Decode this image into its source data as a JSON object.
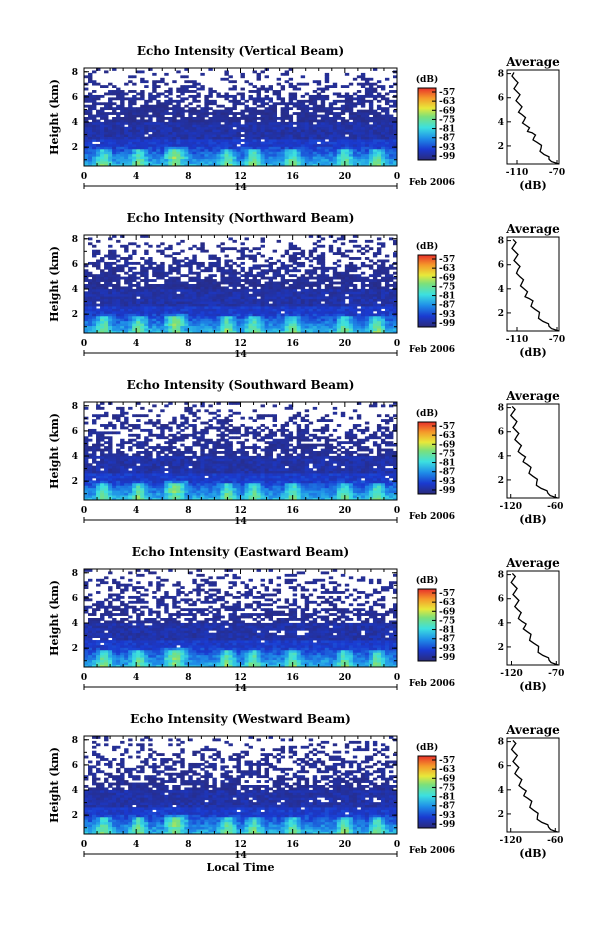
{
  "chart_data": [
    {
      "type": "heatmap",
      "title": "Echo Intensity (Vertical Beam)",
      "ylabel": "Height (km)",
      "ylim": [
        0.5,
        8.3
      ],
      "yticks": [
        "2",
        "4",
        "6",
        "8"
      ],
      "xlim": [
        0,
        24
      ],
      "xticks": [
        "0",
        "4",
        "8",
        "12",
        "16",
        "20",
        "0"
      ],
      "day_label": "14",
      "date_label": "Feb 2006",
      "colorbar": {
        "label": "(dB)",
        "ticks": [
          "-57",
          "-63",
          "-69",
          "-75",
          "-81",
          "-87",
          "-93",
          "-99"
        ]
      },
      "profile": {
        "title": "Average",
        "xlabel": "(dB)",
        "xticks": [
          "-110",
          "-70"
        ],
        "xlim": [
          -120,
          -68
        ],
        "yticks": [
          "2",
          "4",
          "6",
          "8"
        ],
        "points": [
          [
            -68,
            0.5
          ],
          [
            -78,
            0.9
          ],
          [
            -83,
            1.3
          ],
          [
            -86,
            1.8
          ],
          [
            -90,
            2.3
          ],
          [
            -93,
            2.7
          ],
          [
            -95,
            3.1
          ],
          [
            -99,
            3.3
          ],
          [
            -101,
            3.7
          ],
          [
            -103,
            4.1
          ],
          [
            -105,
            4.6
          ],
          [
            -107,
            5.0
          ],
          [
            -108,
            5.5
          ],
          [
            -109,
            6.0
          ],
          [
            -110,
            6.5
          ],
          [
            -111,
            7.0
          ],
          [
            -112,
            7.5
          ],
          [
            -113,
            8.1
          ]
        ]
      }
    },
    {
      "type": "heatmap",
      "title": "Echo Intensity (Northward Beam)",
      "ylabel": "Height (km)",
      "ylim": [
        0.5,
        8.3
      ],
      "yticks": [
        "2",
        "4",
        "6",
        "8"
      ],
      "xlim": [
        0,
        24
      ],
      "xticks": [
        "0",
        "4",
        "8",
        "12",
        "16",
        "20",
        "0"
      ],
      "day_label": "14",
      "date_label": "Feb 2006",
      "colorbar": {
        "label": "(dB)",
        "ticks": [
          "-57",
          "-63",
          "-69",
          "-75",
          "-81",
          "-87",
          "-93",
          "-99"
        ]
      },
      "profile": {
        "title": "Average",
        "xlabel": "(dB)",
        "xticks": [
          "-110",
          "-70"
        ],
        "xlim": [
          -120,
          -68
        ],
        "yticks": [
          "2",
          "4",
          "6",
          "8"
        ],
        "points": [
          [
            -68,
            0.5
          ],
          [
            -78,
            0.9
          ],
          [
            -84,
            1.3
          ],
          [
            -88,
            1.8
          ],
          [
            -92,
            2.3
          ],
          [
            -95,
            2.8
          ],
          [
            -98,
            3.2
          ],
          [
            -101,
            3.5
          ],
          [
            -103,
            4.0
          ],
          [
            -105,
            4.5
          ],
          [
            -107,
            5.0
          ],
          [
            -109,
            5.6
          ],
          [
            -110,
            6.1
          ],
          [
            -111,
            6.6
          ],
          [
            -112,
            7.1
          ],
          [
            -113,
            7.6
          ],
          [
            -114,
            8.1
          ]
        ]
      }
    },
    {
      "type": "heatmap",
      "title": "Echo Intensity (Southward Beam)",
      "ylabel": "Height (km)",
      "ylim": [
        0.5,
        8.3
      ],
      "yticks": [
        "2",
        "4",
        "6",
        "8"
      ],
      "xlim": [
        0,
        24
      ],
      "xticks": [
        "0",
        "4",
        "8",
        "12",
        "16",
        "20",
        "0"
      ],
      "day_label": "14",
      "date_label": "Feb 2006",
      "colorbar": {
        "label": "(dB)",
        "ticks": [
          "-57",
          "-63",
          "-69",
          "-75",
          "-81",
          "-87",
          "-93",
          "-99"
        ]
      },
      "profile": {
        "title": "Average",
        "xlabel": "(dB)",
        "xticks": [
          "-120",
          "-60"
        ],
        "xlim": [
          -125,
          -55
        ],
        "yticks": [
          "2",
          "4",
          "6",
          "8"
        ],
        "points": [
          [
            -57,
            0.5
          ],
          [
            -70,
            0.9
          ],
          [
            -79,
            1.3
          ],
          [
            -85,
            1.8
          ],
          [
            -90,
            2.3
          ],
          [
            -94,
            2.8
          ],
          [
            -98,
            3.3
          ],
          [
            -102,
            3.7
          ],
          [
            -105,
            4.1
          ],
          [
            -108,
            4.6
          ],
          [
            -110,
            5.1
          ],
          [
            -112,
            5.6
          ],
          [
            -113,
            6.1
          ],
          [
            -114,
            6.6
          ],
          [
            -116,
            7.1
          ],
          [
            -117,
            7.6
          ],
          [
            -118,
            8.1
          ]
        ]
      }
    },
    {
      "type": "heatmap",
      "title": "Echo Intensity (Eastward Beam)",
      "ylabel": "Height (km)",
      "ylim": [
        0.5,
        8.3
      ],
      "yticks": [
        "2",
        "4",
        "6",
        "8"
      ],
      "xlim": [
        0,
        24
      ],
      "xticks": [
        "0",
        "4",
        "8",
        "12",
        "16",
        "20",
        "0"
      ],
      "day_label": "14",
      "date_label": "Feb 2006",
      "colorbar": {
        "label": "(dB)",
        "ticks": [
          "-57",
          "-63",
          "-69",
          "-75",
          "-81",
          "-87",
          "-93",
          "-99"
        ]
      },
      "profile": {
        "title": "Average",
        "xlabel": "(dB)",
        "xticks": [
          "-120",
          "-70"
        ],
        "xlim": [
          -125,
          -67
        ],
        "yticks": [
          "2",
          "4",
          "6",
          "8"
        ],
        "points": [
          [
            -68,
            0.5
          ],
          [
            -78,
            0.9
          ],
          [
            -85,
            1.3
          ],
          [
            -90,
            1.8
          ],
          [
            -95,
            2.3
          ],
          [
            -99,
            2.8
          ],
          [
            -103,
            3.3
          ],
          [
            -105,
            3.7
          ],
          [
            -108,
            4.1
          ],
          [
            -111,
            4.6
          ],
          [
            -113,
            5.1
          ],
          [
            -114,
            5.6
          ],
          [
            -115,
            6.1
          ],
          [
            -116,
            6.6
          ],
          [
            -117,
            7.1
          ],
          [
            -118,
            7.6
          ],
          [
            -119,
            8.1
          ]
        ]
      }
    },
    {
      "type": "heatmap",
      "title": "Echo Intensity (Westward Beam)",
      "ylabel": "Height (km)",
      "ylim": [
        0.5,
        8.3
      ],
      "yticks": [
        "2",
        "4",
        "6",
        "8"
      ],
      "xlim": [
        0,
        24
      ],
      "xticks": [
        "0",
        "4",
        "8",
        "12",
        "16",
        "20",
        "0"
      ],
      "day_label": "14",
      "date_label": "Feb 2006",
      "xlabel": "Local Time",
      "colorbar": {
        "label": "(dB)",
        "ticks": [
          "-57",
          "-63",
          "-69",
          "-75",
          "-81",
          "-87",
          "-93",
          "-99"
        ]
      },
      "profile": {
        "title": "Average",
        "xlabel": "(dB)",
        "xticks": [
          "-120",
          "-60"
        ],
        "xlim": [
          -125,
          -55
        ],
        "yticks": [
          "2",
          "4",
          "6",
          "8"
        ],
        "points": [
          [
            -57,
            0.5
          ],
          [
            -69,
            0.9
          ],
          [
            -78,
            1.3
          ],
          [
            -84,
            1.8
          ],
          [
            -89,
            2.3
          ],
          [
            -93,
            2.8
          ],
          [
            -97,
            3.3
          ],
          [
            -101,
            3.7
          ],
          [
            -104,
            4.1
          ],
          [
            -107,
            4.6
          ],
          [
            -110,
            5.1
          ],
          [
            -112,
            5.6
          ],
          [
            -113,
            6.1
          ],
          [
            -114,
            6.6
          ],
          [
            -115,
            7.1
          ],
          [
            -116,
            7.6
          ],
          [
            -117,
            8.1
          ]
        ]
      }
    }
  ]
}
